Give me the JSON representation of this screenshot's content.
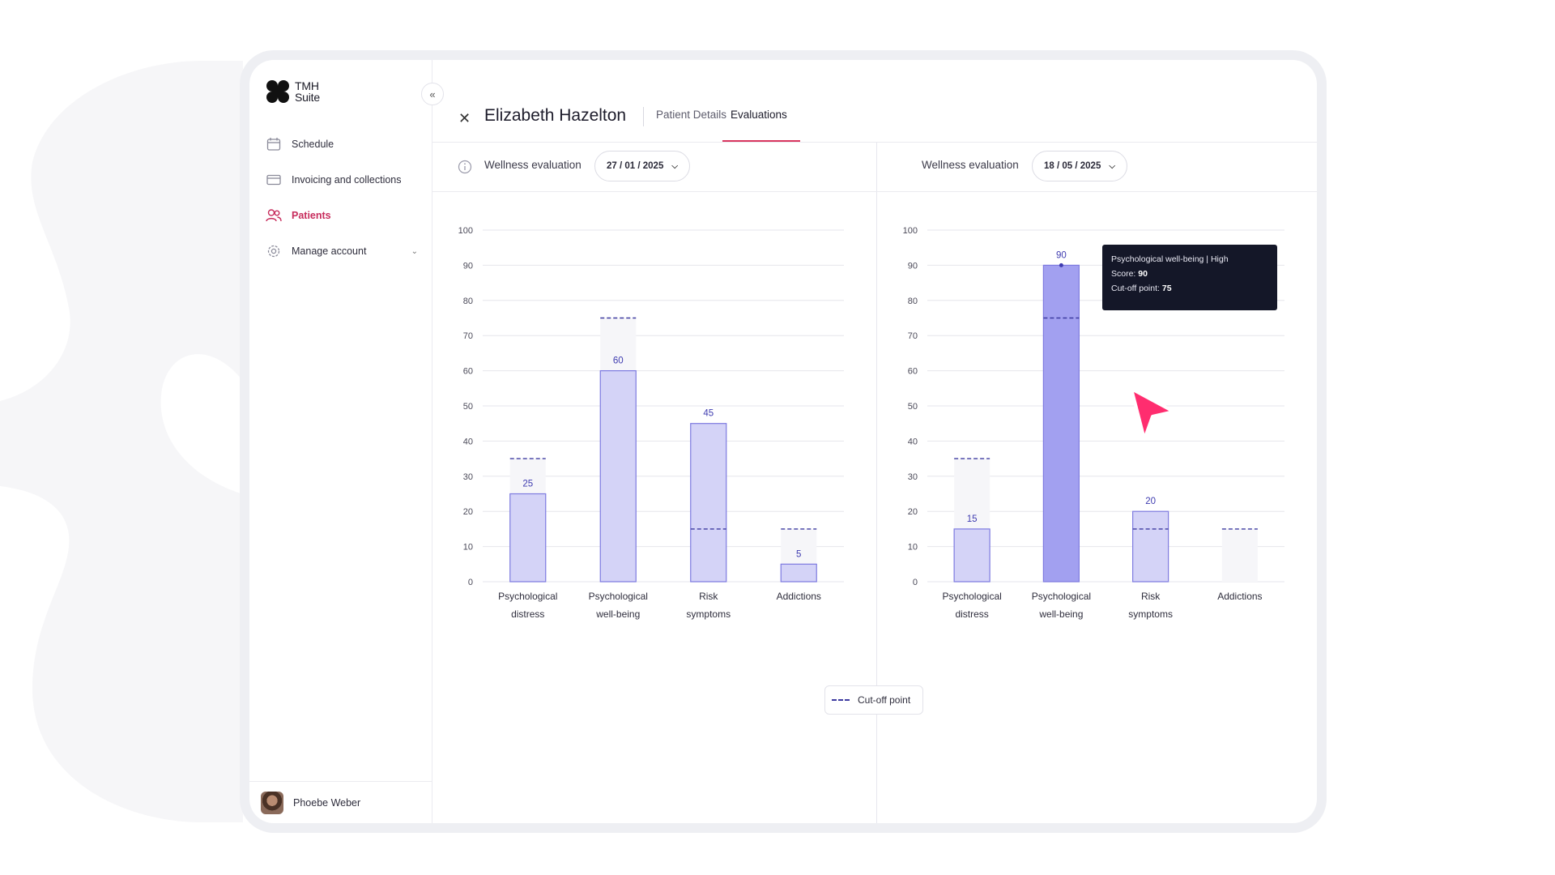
{
  "app": {
    "logo_line1": "TMH",
    "logo_line2": "Suite",
    "collapse_icon": "double-chevron-left-icon"
  },
  "sidebar": {
    "items": [
      {
        "label": "Schedule",
        "icon": "calendar-icon",
        "active": false
      },
      {
        "label": "Invoicing and collections",
        "icon": "credit-card-icon",
        "active": false
      },
      {
        "label": "Patients",
        "icon": "users-icon",
        "active": true
      },
      {
        "label": "Manage account",
        "icon": "gear-icon",
        "active": false,
        "has_submenu": true
      }
    ],
    "user_name": "Phoebe Weber"
  },
  "header": {
    "patient_name": "Elizabeth Hazelton",
    "tabs": [
      {
        "label": "Patient Details",
        "active": false
      },
      {
        "label": "Evaluations",
        "active": true
      }
    ]
  },
  "panels": [
    {
      "eval_label": "Wellness evaluation",
      "date": "27 / 01 / 2025"
    },
    {
      "eval_label": "Wellness evaluation",
      "date": "18 / 05 / 2025"
    }
  ],
  "legend": {
    "label": "Cut-off point"
  },
  "tooltip": {
    "title": "Psychological well-being | High",
    "score_label": "Score:",
    "score": "90",
    "cutoff_label": "Cut-off point:",
    "cutoff": "75"
  },
  "colors": {
    "accent": "#d9365f",
    "bar_fill": "#d4d3f7",
    "bar_stroke": "#7d7ae0",
    "bar_highlight": "#a2a0f0",
    "cutoff_line": "#3d3ba0",
    "value_label": "#3f3cb0"
  },
  "chart_data": [
    {
      "type": "bar",
      "categories": [
        [
          "Psychological",
          "distress"
        ],
        [
          "Psychological",
          "well-being"
        ],
        [
          "Risk",
          "symptoms"
        ],
        [
          "Addictions"
        ]
      ],
      "values": [
        25,
        60,
        45,
        5
      ],
      "cutoffs": [
        35,
        75,
        15,
        15
      ],
      "ylim": [
        0,
        100
      ],
      "yticks": [
        0,
        10,
        20,
        30,
        40,
        50,
        60,
        70,
        80,
        90,
        100
      ],
      "grid": true,
      "highlight": null
    },
    {
      "type": "bar",
      "categories": [
        [
          "Psychological",
          "distress"
        ],
        [
          "Psychological",
          "well-being"
        ],
        [
          "Risk",
          "symptoms"
        ],
        [
          "Addictions"
        ]
      ],
      "values": [
        15,
        90,
        20,
        null
      ],
      "cutoffs": [
        35,
        75,
        15,
        15
      ],
      "ylim": [
        0,
        100
      ],
      "yticks": [
        0,
        10,
        20,
        30,
        40,
        50,
        60,
        70,
        80,
        90,
        100
      ],
      "grid": true,
      "highlight": 1
    }
  ]
}
